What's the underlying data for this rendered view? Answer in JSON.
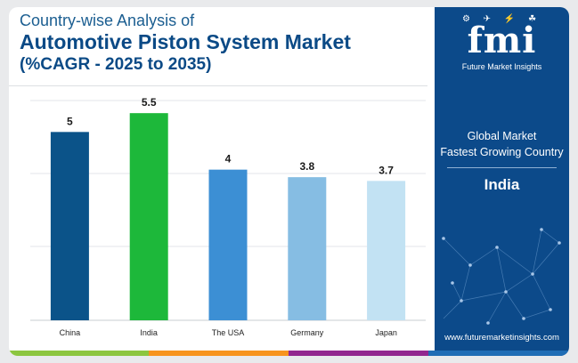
{
  "header": {
    "title_line1": "Country-wise Analysis of",
    "title_line2": "Automotive Piston System Market",
    "title_line3": "(%CAGR - 2025 to 2035)"
  },
  "chart_data": {
    "type": "bar",
    "categories": [
      "China",
      "India",
      "The USA",
      "Germany",
      "Japan"
    ],
    "values": [
      5,
      5.5,
      4,
      3.8,
      3.7
    ],
    "value_labels": [
      "5",
      "5.5",
      "4",
      "3.8",
      "3.7"
    ],
    "bar_colors": [
      "#0b5389",
      "#1db83a",
      "#3c8fd4",
      "#86bde3",
      "#c2e2f3"
    ],
    "ylim": [
      0,
      6
    ],
    "grid": true,
    "legend": "none"
  },
  "sidebar": {
    "logo_text": "fmi",
    "logo_subtitle": "Future Market Insights",
    "line1": "Global Market",
    "line2": "Fastest Growing Country",
    "country": "India",
    "website": "www.futuremarketinsights.com"
  },
  "colors": {
    "title": "#0b4a86",
    "sidebar_bg": "#0c4a8a",
    "strip": [
      "#8cc63f",
      "#f7941d",
      "#92278f",
      "#1f6db5"
    ]
  }
}
